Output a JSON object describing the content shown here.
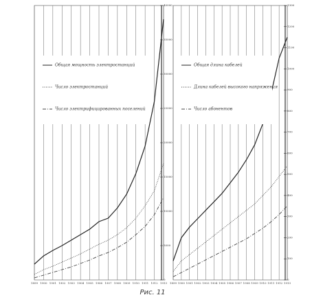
{
  "chart_data": [
    {
      "type": "line",
      "categories": [
        "1899",
        "1900",
        "1901",
        "1902",
        "1903",
        "1904",
        "1905",
        "1906",
        "1907",
        "1908",
        "1909",
        "1910",
        "1911",
        "1912",
        "1913"
      ],
      "series": [
        {
          "name": "Общая мощность электростанций",
          "color": "#222222",
          "style": "solid",
          "values": [
            2300,
            3500,
            4300,
            5000,
            5800,
            6600,
            7400,
            8500,
            9000,
            10500,
            12500,
            15500,
            19500,
            26000,
            38000
          ]
        },
        {
          "name": "Число электростанций",
          "color": "#444444",
          "style": "dotted",
          "values": [
            800,
            1500,
            2000,
            2600,
            3200,
            3800,
            4500,
            5200,
            5800,
            6600,
            7600,
            9000,
            10800,
            13000,
            17000
          ]
        },
        {
          "name": "Число электрифицированных поселений",
          "color": "#444444",
          "style": "dashdot",
          "values": [
            300,
            700,
            1100,
            1500,
            1900,
            2400,
            2900,
            3500,
            4000,
            4700,
            5500,
            6600,
            7800,
            9500,
            12000
          ]
        }
      ],
      "ylim": [
        0,
        40000
      ],
      "yticks": [
        0,
        5000,
        10000,
        15000,
        20000,
        25000,
        30000,
        35000,
        40000
      ],
      "grid": true
    },
    {
      "type": "line",
      "categories": [
        "1899",
        "1900",
        "1901",
        "1902",
        "1903",
        "1904",
        "1905",
        "1906",
        "1907",
        "1908",
        "1909",
        "1910",
        "1911",
        "1912",
        "1913"
      ],
      "series": [
        {
          "name": "Общая длина кабелей",
          "color": "#222222",
          "style": "solid",
          "values": [
            90,
            200,
            250,
            290,
            330,
            370,
            410,
            460,
            510,
            570,
            640,
            740,
            880,
            1050,
            1150
          ]
        },
        {
          "name": "Длина кабелей высокого напряжения",
          "color": "#444444",
          "style": "dotted",
          "values": [
            40,
            90,
            120,
            150,
            180,
            210,
            240,
            270,
            300,
            330,
            360,
            400,
            440,
            490,
            540
          ]
        },
        {
          "name": "Число абонентов",
          "color": "#444444",
          "style": "dashdot",
          "values": [
            15,
            35,
            55,
            75,
            95,
            115,
            135,
            155,
            175,
            195,
            220,
            245,
            275,
            310,
            350
          ]
        }
      ],
      "ylim": [
        0,
        1300
      ],
      "yticks": [
        0,
        100,
        200,
        300,
        400,
        500,
        600,
        700,
        800,
        900,
        1000,
        1100,
        1200,
        1300
      ],
      "grid": true
    }
  ],
  "caption": "Рис. 11"
}
